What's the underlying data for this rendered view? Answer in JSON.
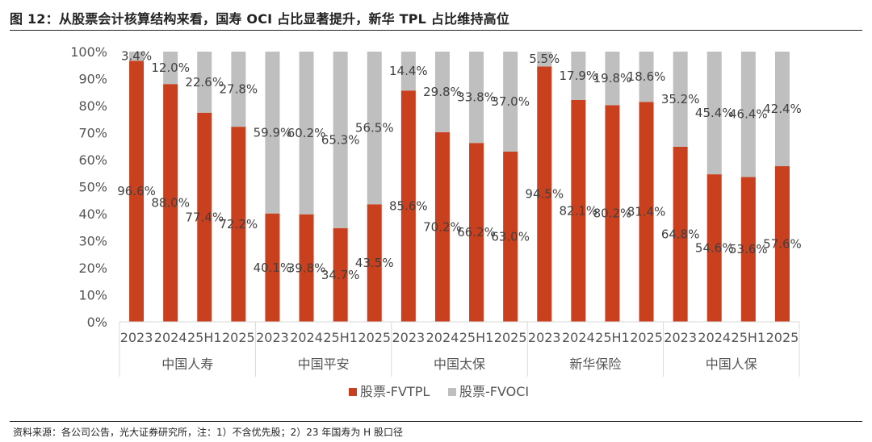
{
  "figure": {
    "title": "图 12：从股票会计核算结构来看，国寿 OCI 占比显著提升，新华 TPL 占比维持高位",
    "source": "资料来源：各公司公告，光大证券研究所，注：1）不含优先股；2）23 年国寿为 H 股口径"
  },
  "chart_data": {
    "type": "bar",
    "stacked": true,
    "groups": [
      "中国人寿",
      "中国平安",
      "中国太保",
      "新华保险",
      "中国人保"
    ],
    "categories": [
      "2023",
      "2024",
      "25H1",
      "2025"
    ],
    "series": [
      {
        "name": "股票-FVTPL",
        "color": "#c8401e",
        "values": [
          [
            96.6,
            88.0,
            77.4,
            72.2
          ],
          [
            40.1,
            39.8,
            34.7,
            43.5
          ],
          [
            85.6,
            70.2,
            66.2,
            63.0
          ],
          [
            94.5,
            82.1,
            80.2,
            81.4
          ],
          [
            64.8,
            54.6,
            53.6,
            57.6
          ]
        ],
        "labels": [
          [
            "96.6%",
            "88.0%",
            "77.4%",
            "72.2%"
          ],
          [
            "40.1%",
            "39.8%",
            "34.7%",
            "43.5%"
          ],
          [
            "85.6%",
            "70.2%",
            "66.2%",
            "63.0%"
          ],
          [
            "94.5%",
            "82.1%",
            "80.2%",
            "81.4%"
          ],
          [
            "64.8%",
            "54.6%",
            "53.6%",
            "57.6%"
          ]
        ]
      },
      {
        "name": "股票-FVOCI",
        "color": "#bfbfbf",
        "values": [
          [
            3.4,
            12.0,
            22.6,
            27.8
          ],
          [
            59.9,
            60.2,
            65.3,
            56.5
          ],
          [
            14.4,
            29.8,
            33.8,
            37.0
          ],
          [
            5.5,
            17.9,
            19.8,
            18.6
          ],
          [
            35.2,
            45.4,
            46.4,
            42.4
          ]
        ],
        "labels": [
          [
            "3.4%",
            "12.0%",
            "22.6%",
            "27.8%"
          ],
          [
            "59.9%",
            "60.2%",
            "65.3%",
            "56.5%"
          ],
          [
            "14.4%",
            "29.8%",
            "33.8%",
            "37.0%"
          ],
          [
            "5.5%",
            "17.9%",
            "19.8%",
            "18.6%"
          ],
          [
            "35.2%",
            "45.4%",
            "46.4%",
            "42.4%"
          ]
        ]
      }
    ],
    "y_ticks": [
      "0%",
      "10%",
      "20%",
      "30%",
      "40%",
      "50%",
      "60%",
      "70%",
      "80%",
      "90%",
      "100%"
    ],
    "ylim": [
      0,
      100
    ],
    "legend_position": "bottom-center"
  }
}
